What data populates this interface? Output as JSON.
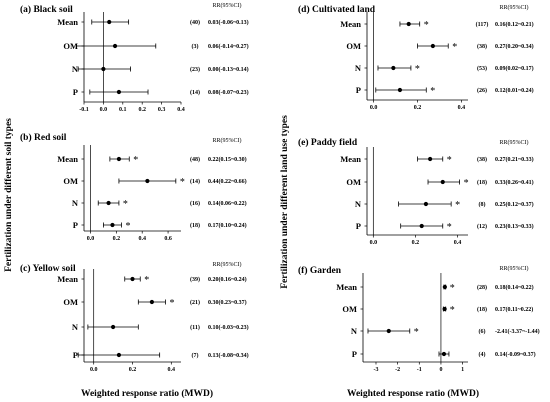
{
  "figure": {
    "left_side_label": "Fertilization under different soil types",
    "right_side_label": "Fertilization under different land use types",
    "x_axis_title": "Weighted response ratio (MWD)"
  },
  "chart_data": [
    {
      "id": "a",
      "type": "scatter",
      "title": "(a) Black soil",
      "ci_header": "RR(95%CI)",
      "xlim": [
        -0.1,
        0.4
      ],
      "xticks": [
        "-0.1",
        "0.0",
        "0.1",
        "0.2",
        "0.3",
        "0.4"
      ],
      "xtick_values": [
        -0.1,
        0.0,
        0.1,
        0.2,
        0.3,
        0.4
      ],
      "rows": [
        {
          "label": "Mean",
          "value": 0.03,
          "low": -0.06,
          "high": 0.13,
          "n": "(40)",
          "ci_text": "0.03(-0.06~0.13)",
          "significant": false
        },
        {
          "label": "OM",
          "value": 0.06,
          "low": -0.14,
          "high": 0.27,
          "n": "(3)",
          "ci_text": "0.06(-0.14~0.27)",
          "significant": false
        },
        {
          "label": "N",
          "value": 0.0,
          "low": -0.13,
          "high": 0.14,
          "n": "(23)",
          "ci_text": "0.00(-0.13~0.14)",
          "significant": false
        },
        {
          "label": "P",
          "value": 0.08,
          "low": -0.07,
          "high": 0.23,
          "n": "(14)",
          "ci_text": "0.08(-0.07~0.23)",
          "significant": false
        }
      ]
    },
    {
      "id": "b",
      "type": "scatter",
      "title": "(b) Red soil",
      "ci_header": "RR(95%CI)",
      "xlim": [
        -0.05,
        0.7
      ],
      "xticks": [
        "0.0",
        "0.2",
        "0.4",
        "0.6"
      ],
      "xtick_values": [
        0.0,
        0.2,
        0.4,
        0.6
      ],
      "rows": [
        {
          "label": "Mean",
          "value": 0.22,
          "low": 0.15,
          "high": 0.3,
          "n": "(48)",
          "ci_text": "0.22(0.15~0.30)",
          "significant": true
        },
        {
          "label": "OM",
          "value": 0.44,
          "low": 0.22,
          "high": 0.66,
          "n": "(14)",
          "ci_text": "0.44(0.22~0.66)",
          "significant": true
        },
        {
          "label": "N",
          "value": 0.14,
          "low": 0.06,
          "high": 0.22,
          "n": "(16)",
          "ci_text": "0.14(0.06~0.22)",
          "significant": true
        },
        {
          "label": "P",
          "value": 0.17,
          "low": 0.1,
          "high": 0.24,
          "n": "(18)",
          "ci_text": "0.17(0.10~0.24)",
          "significant": true
        }
      ]
    },
    {
      "id": "c",
      "type": "scatter",
      "title": "(c) Yellow soil",
      "ci_header": "RR(95%CI)",
      "xlim": [
        -0.05,
        0.45
      ],
      "xticks": [
        "0.0",
        "0.2",
        "0.4"
      ],
      "xtick_values": [
        0.0,
        0.2,
        0.4
      ],
      "rows": [
        {
          "label": "Mean",
          "value": 0.2,
          "low": 0.16,
          "high": 0.24,
          "n": "(39)",
          "ci_text": "0.20(0.16~0.24)",
          "significant": true
        },
        {
          "label": "OM",
          "value": 0.3,
          "low": 0.23,
          "high": 0.37,
          "n": "(21)",
          "ci_text": "0.30(0.23~0.37)",
          "significant": true
        },
        {
          "label": "N",
          "value": 0.1,
          "low": -0.03,
          "high": 0.23,
          "n": "(11)",
          "ci_text": "0.10(-0.03~0.23)",
          "significant": false
        },
        {
          "label": "P",
          "value": 0.13,
          "low": -0.08,
          "high": 0.34,
          "n": "(7)",
          "ci_text": "0.13(-0.08~0.34)",
          "significant": false
        }
      ]
    },
    {
      "id": "d",
      "type": "scatter",
      "title": "(d) Cultivated land",
      "ci_header": "RR(95%CI)",
      "xlim": [
        -0.03,
        0.43
      ],
      "xticks": [
        "0.0",
        "0.2",
        "0.4"
      ],
      "xtick_values": [
        0.0,
        0.2,
        0.4
      ],
      "rows": [
        {
          "label": "Mean",
          "value": 0.16,
          "low": 0.12,
          "high": 0.21,
          "n": "(117)",
          "ci_text": "0.16(0.12~0.21)",
          "significant": true
        },
        {
          "label": "OM",
          "value": 0.27,
          "low": 0.2,
          "high": 0.34,
          "n": "(38)",
          "ci_text": "0.27(0.20~0.34)",
          "significant": true
        },
        {
          "label": "N",
          "value": 0.09,
          "low": 0.02,
          "high": 0.17,
          "n": "(53)",
          "ci_text": "0.09(0.02~0.17)",
          "significant": true
        },
        {
          "label": "P",
          "value": 0.12,
          "low": 0.01,
          "high": 0.24,
          "n": "(26)",
          "ci_text": "0.12(0.01~0.24)",
          "significant": true
        }
      ]
    },
    {
      "id": "e",
      "type": "scatter",
      "title": "(e) Paddy field",
      "ci_header": "RR(95%CI)",
      "xlim": [
        -0.03,
        0.45
      ],
      "xticks": [
        "0.0",
        "0.2",
        "0.4"
      ],
      "xtick_values": [
        0.0,
        0.2,
        0.4
      ],
      "rows": [
        {
          "label": "Mean",
          "value": 0.27,
          "low": 0.21,
          "high": 0.33,
          "n": "(38)",
          "ci_text": "0.27(0.21~0.33)",
          "significant": true
        },
        {
          "label": "OM",
          "value": 0.33,
          "low": 0.26,
          "high": 0.41,
          "n": "(18)",
          "ci_text": "0.33(0.26~0.41)",
          "significant": true
        },
        {
          "label": "N",
          "value": 0.25,
          "low": 0.12,
          "high": 0.37,
          "n": "(8)",
          "ci_text": "0.25(0.12~0.37)",
          "significant": true
        },
        {
          "label": "P",
          "value": 0.23,
          "low": 0.13,
          "high": 0.33,
          "n": "(12)",
          "ci_text": "0.23(0.13~0.33)",
          "significant": true
        }
      ]
    },
    {
      "id": "f",
      "type": "scatter",
      "title": "(f) Garden",
      "ci_header": "RR(95%CI)",
      "xlim": [
        -3.6,
        1.25
      ],
      "xticks": [
        "-3",
        "-2",
        "-1",
        "0",
        "1"
      ],
      "xtick_values": [
        -3,
        -2,
        -1,
        0,
        1
      ],
      "rows": [
        {
          "label": "Mean",
          "value": 0.18,
          "low": 0.14,
          "high": 0.22,
          "n": "(28)",
          "ci_text": "0.18(0.14~0.22)",
          "significant": true
        },
        {
          "label": "OM",
          "value": 0.17,
          "low": 0.11,
          "high": 0.22,
          "n": "(18)",
          "ci_text": "0.17(0.11~0.22)",
          "significant": true
        },
        {
          "label": "N",
          "value": -2.41,
          "low": -3.37,
          "high": -1.44,
          "n": "(6)",
          "ci_text": "-2.41(-3.37~-1.44)",
          "significant": true
        },
        {
          "label": "P",
          "value": 0.14,
          "low": -0.09,
          "high": 0.37,
          "n": "(4)",
          "ci_text": "0.14(-0.09~0.37)",
          "significant": false
        }
      ]
    }
  ]
}
